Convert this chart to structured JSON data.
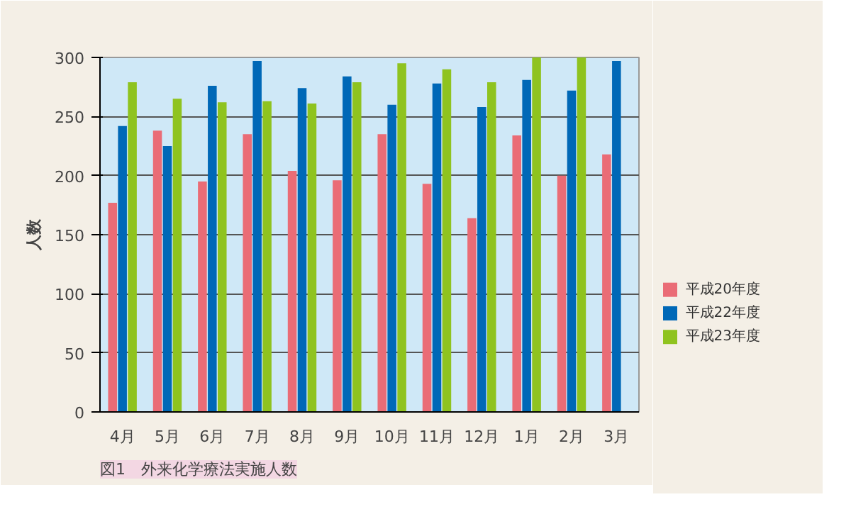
{
  "chart_data": {
    "type": "bar",
    "ylabel": "人数",
    "categories": [
      "4月",
      "5月",
      "6月",
      "7月",
      "8月",
      "9月",
      "10月",
      "11月",
      "12月",
      "1月",
      "2月",
      "3月"
    ],
    "series": [
      {
        "name": "平成20年度",
        "color": "#ea6c76",
        "values": [
          177,
          238,
          195,
          235,
          204,
          196,
          235,
          193,
          164,
          234,
          200,
          218
        ]
      },
      {
        "name": "平成22年度",
        "color": "#0068b7",
        "values": [
          242,
          225,
          276,
          297,
          274,
          284,
          260,
          278,
          258,
          281,
          272,
          297
        ]
      },
      {
        "name": "平成23年度",
        "color": "#8fc31f",
        "values": [
          279,
          265,
          262,
          263,
          261,
          279,
          295,
          290,
          279,
          300,
          300,
          null
        ]
      }
    ],
    "ylim": [
      0,
      300
    ],
    "yticks": [
      0,
      50,
      100,
      150,
      200,
      250,
      300
    ],
    "grid": "y",
    "legend": "right",
    "annotations": [
      "図1　外来化学療法実施人数"
    ]
  }
}
